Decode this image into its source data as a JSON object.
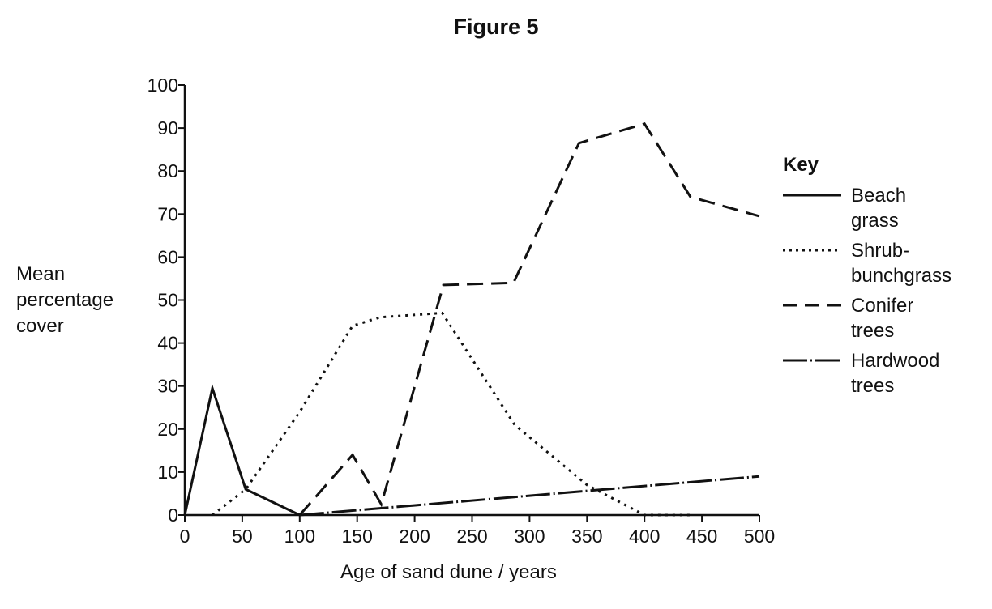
{
  "figure": {
    "title": "Figure 5",
    "ylabel_lines": [
      "Mean",
      "percentage",
      "cover"
    ],
    "xlabel": "Age of sand dune / years",
    "legend_title": "Key",
    "legend": [
      {
        "lines": [
          "Beach",
          "grass"
        ],
        "style": "solid"
      },
      {
        "lines": [
          "Shrub-",
          "bunchgrass"
        ],
        "style": "dotted"
      },
      {
        "lines": [
          "Conifer",
          "trees"
        ],
        "style": "dashed"
      },
      {
        "lines": [
          "Hardwood",
          "trees"
        ],
        "style": "dashdot"
      }
    ]
  },
  "chart_data": {
    "type": "line",
    "title": "Figure 5",
    "xlabel": "Age of sand dune / years",
    "ylabel": "Mean percentage cover",
    "xlim": [
      0,
      500
    ],
    "ylim": [
      0,
      100
    ],
    "xticks": [
      0,
      50,
      100,
      150,
      200,
      250,
      300,
      350,
      400,
      450,
      500
    ],
    "yticks": [
      0,
      10,
      20,
      30,
      40,
      50,
      60,
      70,
      80,
      90,
      100
    ],
    "grid": false,
    "legend_position": "right",
    "series": [
      {
        "name": "Beach grass",
        "style": "solid",
        "points": [
          [
            0,
            0
          ],
          [
            24,
            29.5
          ],
          [
            53,
            6
          ],
          [
            100,
            0
          ]
        ]
      },
      {
        "name": "Shrub-bunchgrass",
        "style": "dotted",
        "points": [
          [
            24,
            0
          ],
          [
            53,
            6
          ],
          [
            100,
            24
          ],
          [
            146,
            44
          ],
          [
            170,
            46
          ],
          [
            224,
            47
          ],
          [
            287,
            21
          ],
          [
            350,
            7
          ],
          [
            400,
            0
          ],
          [
            440,
            0
          ]
        ]
      },
      {
        "name": "Conifer trees",
        "style": "dashed",
        "points": [
          [
            100,
            0
          ],
          [
            146,
            14
          ],
          [
            171,
            2.5
          ],
          [
            225,
            53.5
          ],
          [
            286,
            54
          ],
          [
            343,
            86.5
          ],
          [
            400,
            91
          ],
          [
            440,
            74
          ],
          [
            500,
            69.5
          ]
        ]
      },
      {
        "name": "Hardwood trees",
        "style": "dashdot",
        "points": [
          [
            100,
            0
          ],
          [
            500,
            9
          ]
        ]
      }
    ]
  }
}
